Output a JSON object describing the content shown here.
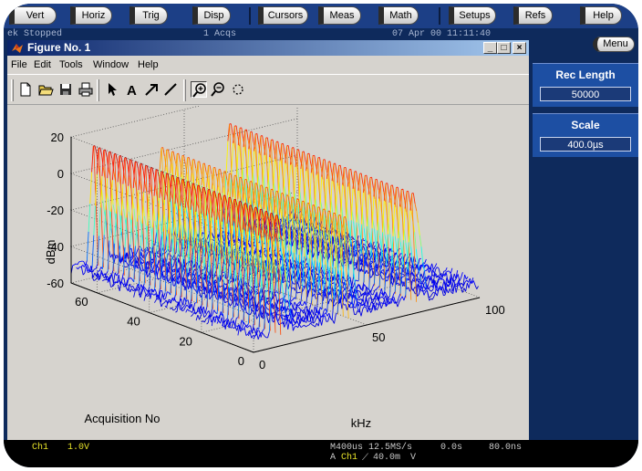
{
  "top_buttons": [
    {
      "label": "Vert"
    },
    {
      "label": "Horiz"
    },
    {
      "label": "Trig"
    },
    {
      "label": "Disp"
    },
    {
      "label": "Cursors"
    },
    {
      "label": "Meas"
    },
    {
      "label": "Math"
    },
    {
      "label": "Setups"
    },
    {
      "label": "Refs"
    },
    {
      "label": "Help"
    }
  ],
  "status": {
    "brand": "ek",
    "state": "Stopped",
    "acqs": "1 Acqs",
    "datetime": "07 Apr 00 11:11:40"
  },
  "menu_button": "Menu",
  "side_panel": {
    "rec_length_label": "Rec Length",
    "rec_length_value": "50000",
    "scale_label": "Scale",
    "scale_value": "400.0µs"
  },
  "figure": {
    "title": "Figure No. 1",
    "window_buttons": {
      "minimize": "_",
      "maximize": "□",
      "close": "×"
    },
    "menu": [
      "File",
      "Edit",
      "Tools",
      "Window",
      "Help"
    ],
    "toolbar_icons": [
      "new-file-icon",
      "open-folder-icon",
      "save-icon",
      "print-icon",
      "arrow-pointer-icon",
      "text-a-icon",
      "arrow-icon",
      "line-icon",
      "zoom-in-icon",
      "zoom-out-icon",
      "rotate-icon"
    ]
  },
  "chart_data": {
    "type": "waterfall-3d",
    "xlabel": "kHz",
    "ylabel": "Acquisition No",
    "zlabel": "dBm",
    "xlim": [
      0,
      100
    ],
    "ylim": [
      0,
      70
    ],
    "zlim": [
      -60,
      20
    ],
    "xticks": [
      "0",
      "50",
      "100"
    ],
    "yticks": [
      "0",
      "20",
      "40",
      "60"
    ],
    "zticks": [
      "20",
      "0",
      "-20",
      "-40",
      "-60"
    ],
    "grid": true,
    "colormap": "jet",
    "peaks": [
      {
        "freq_khz": 10,
        "level_dbm": 12
      },
      {
        "freq_khz": 40,
        "level_dbm": 2
      },
      {
        "freq_khz": 70,
        "level_dbm": 6
      }
    ],
    "noise_floor_dbm": -55
  },
  "readout": {
    "ch1_label": "Ch1",
    "ch1_scale": "1.0V",
    "timebase": "M400us 12.5MS/s",
    "position": "0.0s",
    "sample": "80.0ns",
    "trigger_prefix": "A",
    "trigger_channel": "Ch1",
    "trigger_level": "40.0m",
    "trigger_unit": "V"
  },
  "colors": {
    "screen_bg": "#0e2a5c",
    "panel_accent": "#1d4fa3",
    "ch1_yellow": "#e7e32a"
  }
}
